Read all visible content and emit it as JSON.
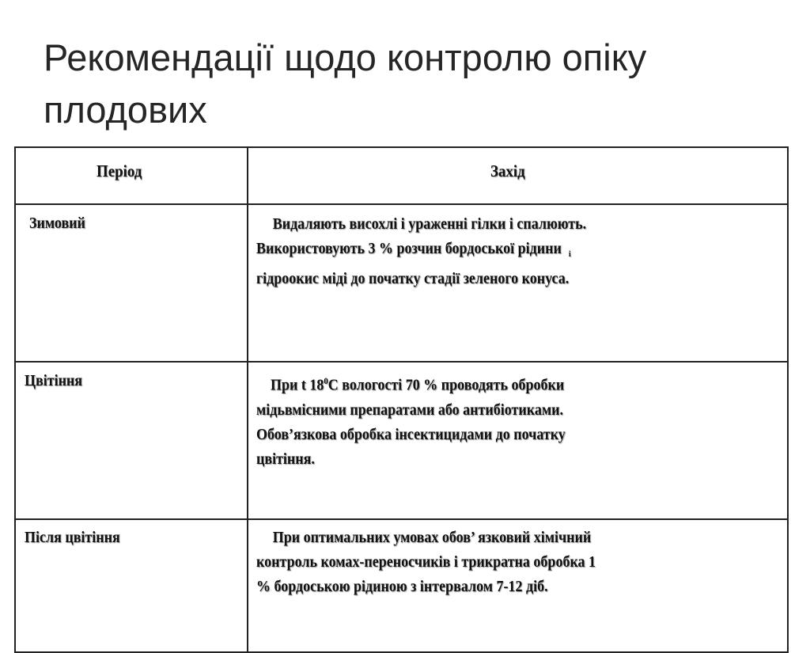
{
  "title_lines": [
    "Рекомендації щодо контролю опіку",
    "плодових"
  ],
  "table": {
    "headers": [
      "Період",
      "Захід"
    ],
    "rows": [
      {
        "period": "Зимовий",
        "lines": [
          "Видаляють висохлі і ураженні гілки  і спалюють.",
          "Використовують 3 % розчин бордоської рідини",
          "гідроокис міді до початку стадії зеленого конуса."
        ],
        "small_mark": "і"
      },
      {
        "period": "Цвітіння",
        "lines_before_sup": "При t 18",
        "sup": "0",
        "lines_after_sup": "С вологості 70 % проводять обробки",
        "lines": [
          "мідьвмісними препаратами або антибіотиками.",
          "Обов’язкова обробка інсектицидами до  початку",
          "цвітіння."
        ]
      },
      {
        "period": "Після цвітіння",
        "lines": [
          "При оптимальних умовах обов’ язковий хімічний",
          "контроль комах-переносчиків і трикратна обробка   1",
          "% бордоською рідиною з інтервалом 7-12 діб."
        ]
      }
    ]
  }
}
